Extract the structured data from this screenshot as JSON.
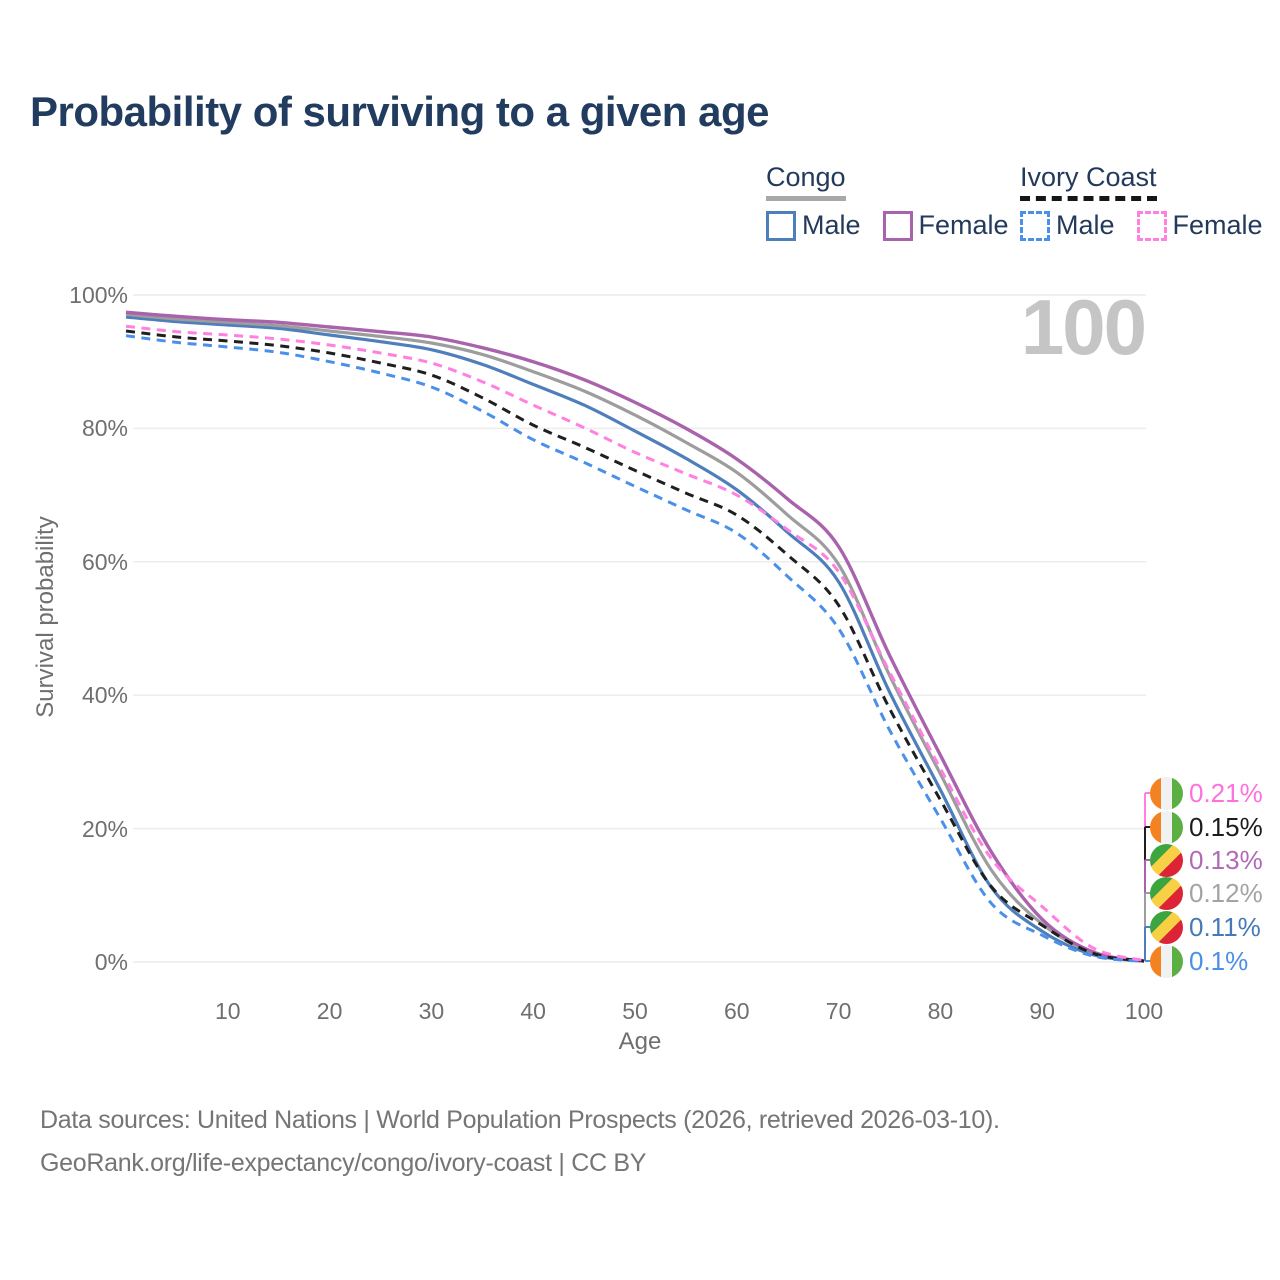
{
  "title": "Probability of surviving to a given age",
  "legend": {
    "congo": {
      "label": "Congo",
      "male": "Male",
      "female": "Female"
    },
    "ivory_coast": {
      "label": "Ivory Coast",
      "male": "Male",
      "female": "Female"
    }
  },
  "watermark": "100",
  "footer": {
    "line1": "Data sources: United Nations | World Population Prospects (2026, retrieved 2026-03-10).",
    "line2": "GeoRank.org/life-expectancy/congo/ivory-coast | CC BY"
  },
  "colors": {
    "title_text": "#223c60",
    "legend_text": "#233a5c",
    "axis_text": "#6f6f6f",
    "gridline": "#ececec",
    "watermark": "#c5c5c5",
    "congo_underline": "#a8a8a8",
    "ivory_coast_underline": "#161616"
  },
  "icons": {
    "congo_flag_colors": [
      "#3da53f",
      "#f7d046",
      "#dc2436"
    ],
    "ivory_coast_flag_colors": [
      "#f58220",
      "#f1f1f1",
      "#5cb043"
    ]
  },
  "chart_data": {
    "type": "line",
    "title": "Probability of surviving to a given age",
    "xlabel": "Age",
    "ylabel": "Survival probability",
    "xlim": [
      0,
      100
    ],
    "ylim": [
      0,
      100
    ],
    "grid": "horizontal",
    "legend_position": "top-right",
    "x_ticks": [
      "10",
      "20",
      "30",
      "40",
      "50",
      "60",
      "70",
      "80",
      "90",
      "100"
    ],
    "x_tick_ages": [
      10,
      20,
      30,
      40,
      50,
      60,
      70,
      80,
      90,
      100
    ],
    "y_ticks": [
      "0%",
      "20%",
      "40%",
      "60%",
      "80%",
      "100%"
    ],
    "y_tick_values": [
      0,
      20,
      40,
      60,
      80,
      100
    ],
    "ages": [
      0,
      5,
      10,
      15,
      20,
      25,
      30,
      35,
      40,
      45,
      50,
      55,
      60,
      65,
      70,
      75,
      80,
      85,
      90,
      95,
      100
    ],
    "series": [
      {
        "id": "congo-male",
        "country": "Congo",
        "sex": "Male",
        "style": "solid",
        "color": "#4e7fba",
        "width": 3.2,
        "values": [
          96.7,
          96.0,
          95.5,
          95.0,
          94.0,
          93.0,
          91.8,
          89.6,
          86.6,
          83.5,
          79.6,
          75.5,
          70.8,
          64.4,
          57.0,
          40.5,
          25.8,
          11.2,
          4.6,
          1.1,
          0.11
        ]
      },
      {
        "id": "congo-both",
        "country": "Congo",
        "sex": "Both",
        "style": "solid",
        "color": "#9d9d9d",
        "width": 3.2,
        "values": [
          97.1,
          96.4,
          95.9,
          95.4,
          94.6,
          93.8,
          92.8,
          91.1,
          88.5,
          85.6,
          82.0,
          77.9,
          73.4,
          67.0,
          59.6,
          43.0,
          28.2,
          13.8,
          5.7,
          1.4,
          0.12
        ]
      },
      {
        "id": "congo-female",
        "country": "Congo",
        "sex": "Female",
        "style": "solid",
        "color": "#a962ac",
        "width": 3.4,
        "values": [
          97.4,
          96.8,
          96.3,
          95.9,
          95.2,
          94.5,
          93.7,
          92.1,
          90.0,
          87.3,
          83.9,
          80.0,
          75.4,
          69.4,
          62.3,
          46.0,
          31.0,
          16.5,
          6.4,
          1.5,
          0.13
        ]
      },
      {
        "id": "ivory-coast-both",
        "country": "Ivory Coast",
        "sex": "Both",
        "style": "dashed",
        "color": "#1f1f1f",
        "width": 3,
        "values": [
          94.6,
          93.7,
          93.1,
          92.4,
          91.3,
          89.8,
          88.0,
          84.6,
          80.5,
          77.2,
          73.7,
          70.3,
          67.0,
          61.0,
          53.5,
          38.0,
          24.3,
          11.3,
          5.5,
          1.3,
          0.15
        ]
      },
      {
        "id": "ivory-coast-male",
        "country": "Ivory Coast",
        "sex": "Male",
        "style": "dashed",
        "color": "#4a90ea",
        "width": 3,
        "values": [
          93.9,
          92.9,
          92.2,
          91.4,
          90.0,
          88.3,
          86.2,
          82.6,
          78.3,
          74.9,
          71.3,
          67.8,
          64.3,
          57.8,
          50.0,
          34.8,
          21.5,
          8.8,
          4.0,
          0.9,
          0.1
        ]
      },
      {
        "id": "ivory-coast-female",
        "country": "Ivory Coast",
        "sex": "Female",
        "style": "dashed",
        "color": "#ff80e0",
        "width": 3,
        "values": [
          95.3,
          94.5,
          94.0,
          93.4,
          92.5,
          91.3,
          89.8,
          87.0,
          83.5,
          80.1,
          76.4,
          73.2,
          70.0,
          64.8,
          58.5,
          43.5,
          29.0,
          15.5,
          8.3,
          2.1,
          0.21
        ]
      }
    ],
    "end_labels": [
      {
        "series_id": "ivory-coast-female",
        "flag": "ivory-coast",
        "label": "0.21%",
        "text_color": "#ff70dd"
      },
      {
        "series_id": "ivory-coast-both",
        "flag": "ivory-coast",
        "label": "0.15%",
        "text_color": "#1c1c1c"
      },
      {
        "series_id": "congo-female",
        "flag": "congo",
        "label": "0.13%",
        "text_color": "#b06ab6"
      },
      {
        "series_id": "congo-both",
        "flag": "congo",
        "label": "0.12%",
        "text_color": "#a3a3a3"
      },
      {
        "series_id": "congo-male",
        "flag": "congo",
        "label": "0.11%",
        "text_color": "#4579b8"
      },
      {
        "series_id": "ivory-coast-male",
        "flag": "ivory-coast",
        "label": "0.1%",
        "text_color": "#4a90e8"
      }
    ]
  }
}
